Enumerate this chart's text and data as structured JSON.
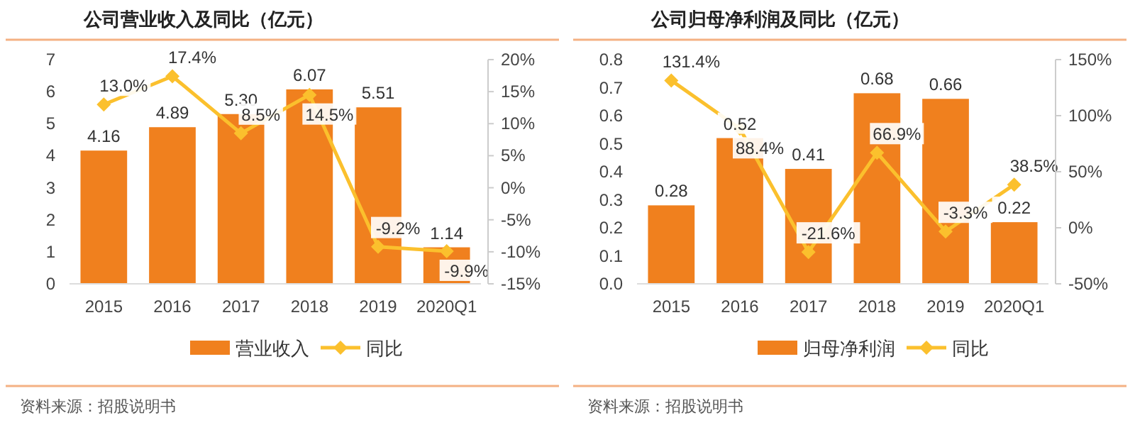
{
  "chart_data": [
    {
      "type": "bar",
      "title": "公司营业收入及同比（亿元）",
      "categories": [
        "2015",
        "2016",
        "2017",
        "2018",
        "2019",
        "2020Q1"
      ],
      "ylim": [
        0,
        7
      ],
      "yticks": [
        0,
        1,
        2,
        3,
        4,
        5,
        6,
        7
      ],
      "y2lim": [
        -15,
        20
      ],
      "y2ticks": [
        {
          "value": -15,
          "label": "-15%"
        },
        {
          "value": -10,
          "label": "-10%"
        },
        {
          "value": -5,
          "label": "-5%"
        },
        {
          "value": 0,
          "label": "0%"
        },
        {
          "value": 5,
          "label": "5%"
        },
        {
          "value": 10,
          "label": "10%"
        },
        {
          "value": 15,
          "label": "15%"
        },
        {
          "value": 20,
          "label": "20%"
        }
      ],
      "legend": "bottom",
      "grid": false,
      "series": [
        {
          "name": "营业收入",
          "color": "#f0801e",
          "values": [
            4.16,
            4.89,
            5.3,
            6.07,
            5.51,
            1.14
          ],
          "value_labels": [
            "4.16",
            "4.89",
            "5.30",
            "6.07",
            "5.51",
            "1.14"
          ]
        },
        {
          "name": "同比",
          "type": "line",
          "axis": "y2",
          "color": "#fbc02d",
          "marker": "diamond",
          "values": [
            13.0,
            17.4,
            8.5,
            14.5,
            -9.2,
            -9.9
          ],
          "value_labels": [
            "13.0%",
            "17.4%",
            "8.5%",
            "14.5%",
            "-9.2%",
            "-9.9%"
          ]
        }
      ],
      "annotations": [
        "资料来源：招股说明书"
      ]
    },
    {
      "type": "bar",
      "title": "公司归母净利润及同比（亿元）",
      "categories": [
        "2015",
        "2016",
        "2017",
        "2018",
        "2019",
        "2020Q1"
      ],
      "ylim": [
        0,
        0.8
      ],
      "yticks": [
        {
          "value": 0,
          "label": "0.0"
        },
        {
          "value": 0.1,
          "label": "0.1"
        },
        {
          "value": 0.2,
          "label": "0.2"
        },
        {
          "value": 0.3,
          "label": "0.3"
        },
        {
          "value": 0.4,
          "label": "0.4"
        },
        {
          "value": 0.5,
          "label": "0.5"
        },
        {
          "value": 0.6,
          "label": "0.6"
        },
        {
          "value": 0.7,
          "label": "0.7"
        },
        {
          "value": 0.8,
          "label": "0.8"
        }
      ],
      "y2lim": [
        -50,
        150
      ],
      "y2ticks": [
        {
          "value": -50,
          "label": "-50%"
        },
        {
          "value": 0,
          "label": "0%"
        },
        {
          "value": 50,
          "label": "50%"
        },
        {
          "value": 100,
          "label": "100%"
        },
        {
          "value": 150,
          "label": "150%"
        }
      ],
      "legend": "bottom",
      "grid": false,
      "series": [
        {
          "name": "归母净利润",
          "color": "#f0801e",
          "values": [
            0.28,
            0.52,
            0.41,
            0.68,
            0.66,
            0.22
          ],
          "value_labels": [
            "0.28",
            "0.52",
            "0.41",
            "0.68",
            "0.66",
            "0.22"
          ]
        },
        {
          "name": "同比",
          "type": "line",
          "axis": "y2",
          "color": "#fbc02d",
          "marker": "diamond",
          "values": [
            131.4,
            88.4,
            -21.6,
            66.9,
            -3.3,
            38.5
          ],
          "value_labels": [
            "131.4%",
            "88.4%",
            "-21.6%",
            "66.9%",
            "-3.3%",
            "38.5%"
          ]
        }
      ],
      "annotations": [
        "资料来源：招股说明书"
      ]
    }
  ]
}
